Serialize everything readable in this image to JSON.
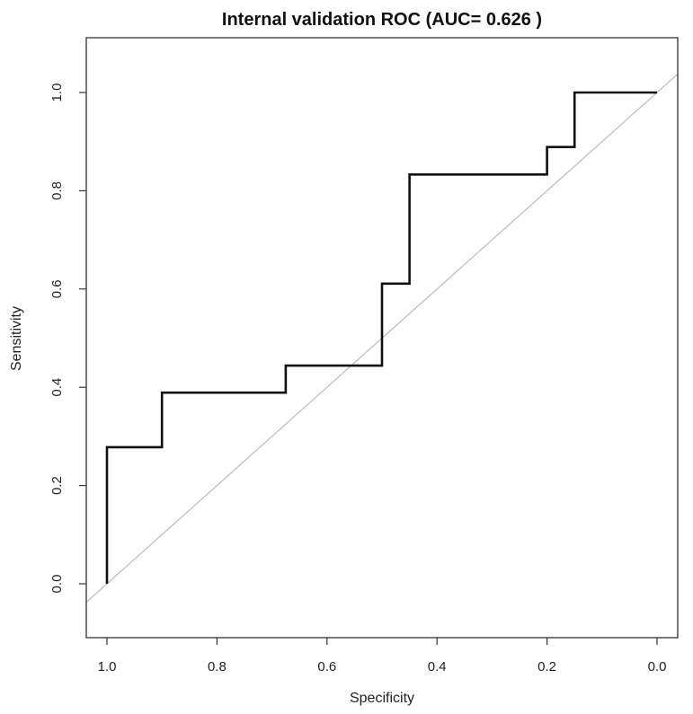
{
  "chart_data": {
    "type": "line",
    "title": "Internal validation ROC (AUC= 0.626 )",
    "xlabel": "Specificity",
    "ylabel": "Sensitivity",
    "x_reversed": true,
    "xlim": [
      1.0,
      0.0
    ],
    "ylim": [
      0.0,
      1.0
    ],
    "grid": false,
    "xticks": [
      {
        "value": 1.0,
        "label": "1.0"
      },
      {
        "value": 0.8,
        "label": "0.8"
      },
      {
        "value": 0.6,
        "label": "0.6"
      },
      {
        "value": 0.4,
        "label": "0.4"
      },
      {
        "value": 0.2,
        "label": "0.2"
      },
      {
        "value": 0.0,
        "label": "0.0"
      }
    ],
    "yticks": [
      {
        "value": 0.0,
        "label": "0.0"
      },
      {
        "value": 0.2,
        "label": "0.2"
      },
      {
        "value": 0.4,
        "label": "0.4"
      },
      {
        "value": 0.6,
        "label": "0.6"
      },
      {
        "value": 0.8,
        "label": "0.8"
      },
      {
        "value": 1.0,
        "label": "1.0"
      }
    ],
    "series": [
      {
        "color": "#111111",
        "points": [
          {
            "x": 1.0,
            "y": 0.0
          },
          {
            "x": 1.0,
            "y": 0.278
          },
          {
            "x": 0.9,
            "y": 0.278
          },
          {
            "x": 0.9,
            "y": 0.389
          },
          {
            "x": 0.675,
            "y": 0.389
          },
          {
            "x": 0.675,
            "y": 0.444
          },
          {
            "x": 0.5,
            "y": 0.444
          },
          {
            "x": 0.5,
            "y": 0.611
          },
          {
            "x": 0.45,
            "y": 0.611
          },
          {
            "x": 0.45,
            "y": 0.833
          },
          {
            "x": 0.2,
            "y": 0.833
          },
          {
            "x": 0.2,
            "y": 0.889
          },
          {
            "x": 0.15,
            "y": 0.889
          },
          {
            "x": 0.15,
            "y": 1.0
          },
          {
            "x": 0.0,
            "y": 1.0
          }
        ]
      }
    ],
    "reference_line": {
      "color": "#bbbbbb",
      "points": [
        {
          "x": 1.0,
          "y": 0.0
        },
        {
          "x": 0.0,
          "y": 1.0
        }
      ]
    }
  }
}
